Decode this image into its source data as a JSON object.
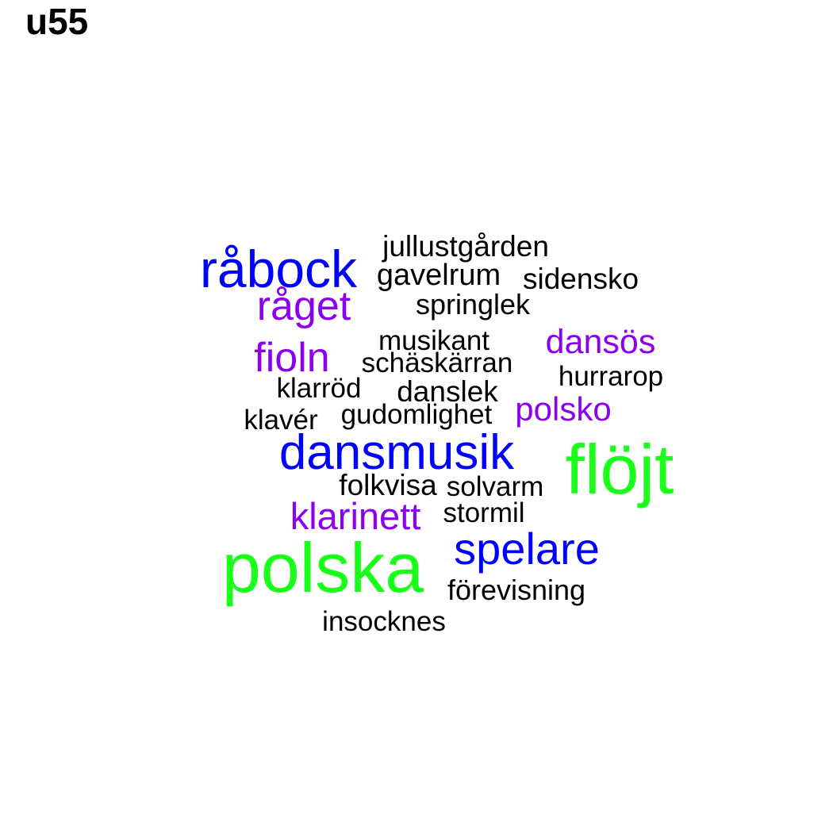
{
  "title": "u55",
  "colors": {
    "black": "#000000",
    "purple": "#8b00ee",
    "blue": "#0000ff",
    "green": "#1aff1a"
  },
  "words": [
    {
      "text": "jullustgården",
      "color": "black"
    },
    {
      "text": "råbock",
      "color": "blue"
    },
    {
      "text": "gavelrum",
      "color": "black"
    },
    {
      "text": "sidensko",
      "color": "black"
    },
    {
      "text": "råget",
      "color": "purple"
    },
    {
      "text": "springlek",
      "color": "black"
    },
    {
      "text": "musikant",
      "color": "black"
    },
    {
      "text": "dansös",
      "color": "purple"
    },
    {
      "text": "fioln",
      "color": "purple"
    },
    {
      "text": "schäskärran",
      "color": "black"
    },
    {
      "text": "hurrarop",
      "color": "black"
    },
    {
      "text": "klarröd",
      "color": "black"
    },
    {
      "text": "danslek",
      "color": "black"
    },
    {
      "text": "polsko",
      "color": "purple"
    },
    {
      "text": "klavér",
      "color": "black"
    },
    {
      "text": "gudomlighet",
      "color": "black"
    },
    {
      "text": "dansmusik",
      "color": "blue"
    },
    {
      "text": "flöjt",
      "color": "green"
    },
    {
      "text": "folkvisa",
      "color": "black"
    },
    {
      "text": "solvarm",
      "color": "black"
    },
    {
      "text": "klarinett",
      "color": "purple"
    },
    {
      "text": "stormil",
      "color": "black"
    },
    {
      "text": "spelare",
      "color": "blue"
    },
    {
      "text": "polska",
      "color": "green"
    },
    {
      "text": "förevisning",
      "color": "black"
    },
    {
      "text": "insocknes",
      "color": "black"
    }
  ]
}
